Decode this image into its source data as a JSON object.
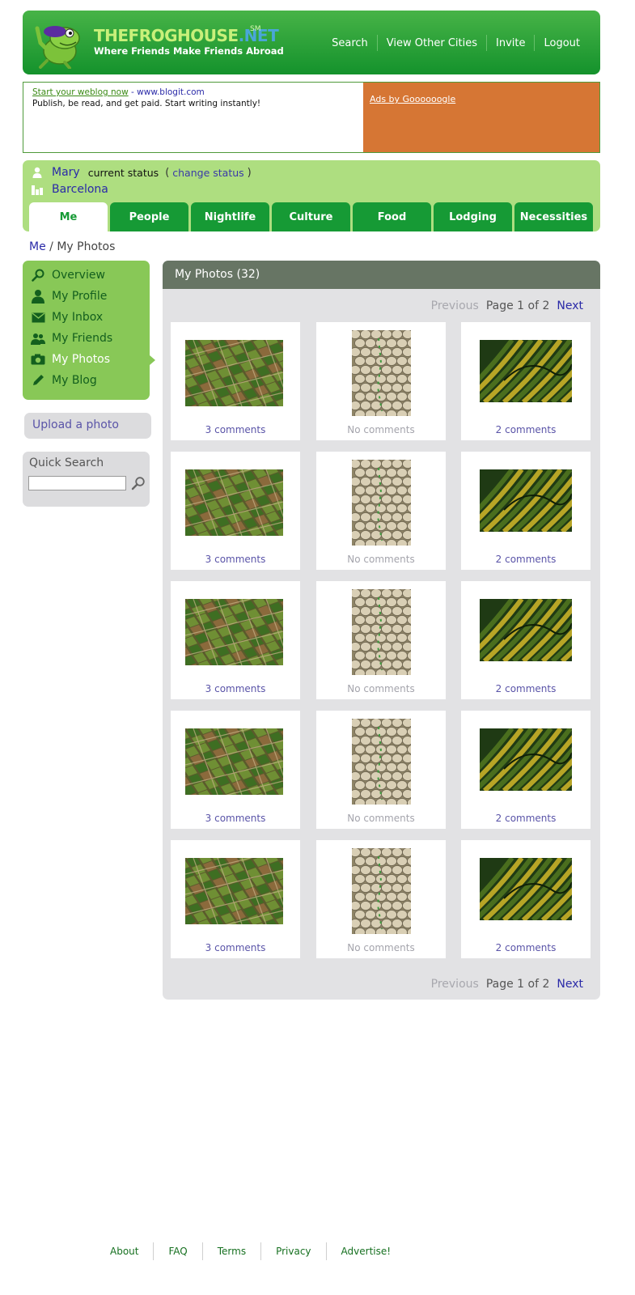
{
  "header": {
    "brand_main": "THEFROGHOUSE",
    "brand_net": ".NET",
    "brand_sm": "SM",
    "tagline": "Where Friends Make Friends Abroad",
    "nav": [
      "Search",
      "View Other Cities",
      "Invite",
      "Logout"
    ]
  },
  "ad": {
    "link_text": "Start your weblog now",
    "link_url_text": "- www.blogit.com",
    "body": "Publish, be read, and get paid. Start writing instantly!",
    "ads_by": "Ads by Goooooogle"
  },
  "status": {
    "name": "Mary",
    "status_text": "current status",
    "paren_open": "(",
    "change_label": "change status",
    "paren_close": ")",
    "city": "Barcelona"
  },
  "tabs": [
    {
      "label": "Me",
      "active": true
    },
    {
      "label": "People",
      "active": false
    },
    {
      "label": "Nightlife",
      "active": false
    },
    {
      "label": "Culture",
      "active": false
    },
    {
      "label": "Food",
      "active": false
    },
    {
      "label": "Lodging",
      "active": false
    },
    {
      "label": "Necessities",
      "active": false
    }
  ],
  "breadcrumb": {
    "root": "Me",
    "sep": "/",
    "current": "My Photos"
  },
  "menu": [
    {
      "label": "Overview",
      "icon": "magnifier-icon",
      "active": false
    },
    {
      "label": "My Profile",
      "icon": "person-icon",
      "active": false
    },
    {
      "label": "My Inbox",
      "icon": "envelope-icon",
      "active": false
    },
    {
      "label": "My Friends",
      "icon": "people-icon",
      "active": false
    },
    {
      "label": "My Photos",
      "icon": "camera-icon",
      "active": true
    },
    {
      "label": "My Blog",
      "icon": "pencil-icon",
      "active": false
    }
  ],
  "upload_label": "Upload a photo",
  "quick_search": {
    "title": "Quick Search",
    "value": ""
  },
  "photos": {
    "title": "My Photos (32)",
    "pager": {
      "prev": "Previous",
      "info": "Page 1 of 2",
      "next": "Next"
    },
    "rows": [
      [
        "3 comments",
        "No comments",
        "2 comments"
      ],
      [
        "3 comments",
        "No comments",
        "2 comments"
      ],
      [
        "3 comments",
        "No comments",
        "2 comments"
      ],
      [
        "3 comments",
        "No comments",
        "2 comments"
      ],
      [
        "3 comments",
        "No comments",
        "2 comments"
      ]
    ],
    "thumb_types": [
      "fields-photo",
      "stones-photo",
      "stripes-photo"
    ]
  },
  "footer": [
    "About",
    "FAQ",
    "Terms",
    "Privacy",
    "Advertise!"
  ],
  "colors": {
    "brand_green": "#169a35",
    "status_bg": "#aede80",
    "menu_bg": "#88c857",
    "ad_orange": "#d67634",
    "panel_head": "#677564",
    "link_blue": "#2a2aa8"
  }
}
